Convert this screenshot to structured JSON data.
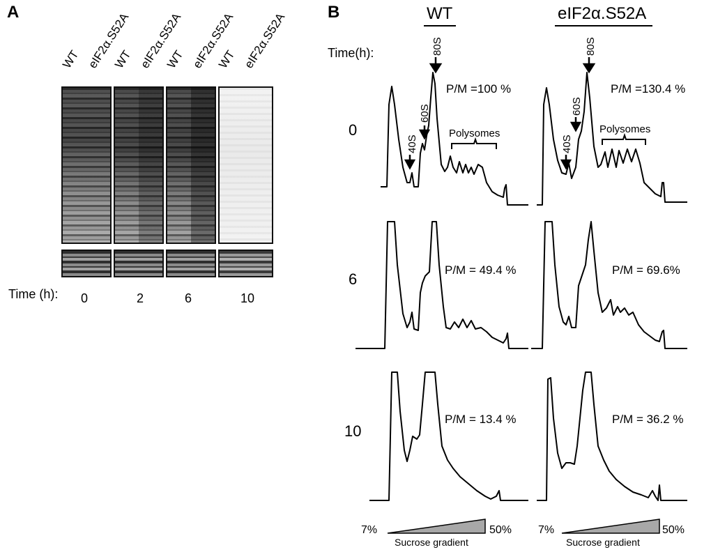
{
  "panel_a": {
    "letter": "A",
    "lane_labels": [
      "WT",
      "eIF2α.S52A",
      "WT",
      "eIF2α.S52A",
      "WT",
      "eIF2α.S52A",
      "WT",
      "eIF2α.S52A"
    ],
    "time_label": "Time (h):",
    "timepoints": [
      "0",
      "2",
      "6",
      "10"
    ]
  },
  "panel_b": {
    "letter": "B",
    "time_label": "Time(h):",
    "col_wt": "WT",
    "col_mut": "eIF2α.S52A",
    "row_times": [
      "0",
      "6",
      "10"
    ],
    "ratios": {
      "wt_0": "P/M =100 %",
      "mut_0": "P/M =130.4 %",
      "wt_6": "P/M = 49.4 %",
      "mut_6": "P/M = 69.6%",
      "wt_10": "P/M = 13.4 %",
      "mut_10": "P/M = 36.2 %"
    },
    "peaks": {
      "s80": "80S",
      "s60": "60S",
      "s40": "40S",
      "poly": "Polysomes"
    },
    "gradient": {
      "low": "7%",
      "high": "50%",
      "label": "Sucrose gradient"
    }
  }
}
